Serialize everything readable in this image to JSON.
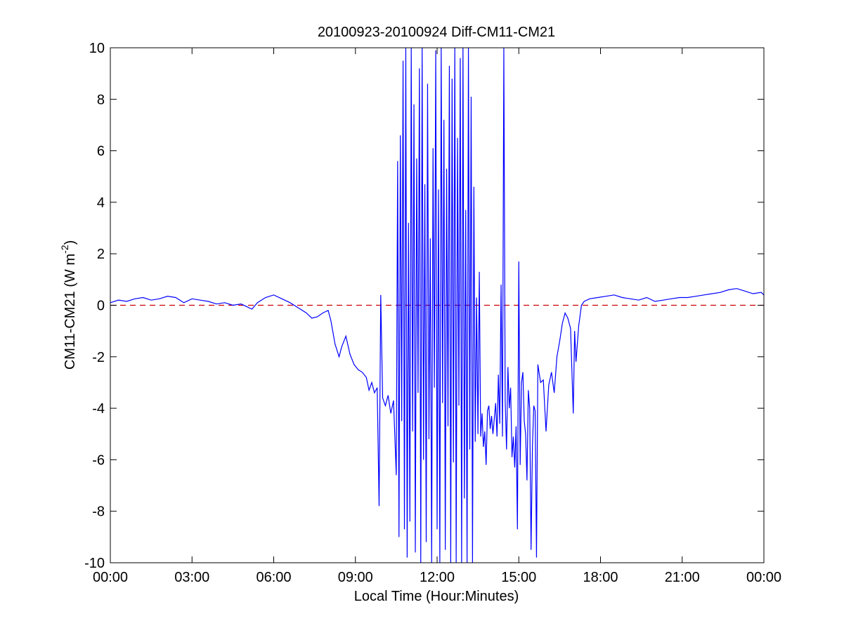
{
  "colors": {
    "background": "#ffffff",
    "axes": "#000000",
    "series": "#0000ff",
    "reference": "#cc0000"
  },
  "chart_data": {
    "type": "line",
    "title": "20100923-20100924 Diff-CM11-CM21",
    "xlabel": "Local Time (Hour:Minutes)",
    "ylabel_main": "CM11-CM21 (W m",
    "ylabel_sup": "-2",
    "ylabel_close": ")",
    "x_unit": "hours",
    "xlim": [
      0,
      24
    ],
    "ylim": [
      -10,
      10
    ],
    "x_ticks": [
      0,
      3,
      6,
      9,
      12,
      15,
      18,
      21,
      24
    ],
    "x_tick_labels": [
      "00:00",
      "03:00",
      "06:00",
      "09:00",
      "12:00",
      "15:00",
      "18:00",
      "21:00",
      "00:00"
    ],
    "y_ticks": [
      -10,
      -8,
      -6,
      -4,
      -2,
      0,
      2,
      4,
      6,
      8,
      10
    ],
    "y_tick_labels": [
      "-10",
      "-8",
      "-6",
      "-4",
      "-2",
      "0",
      "2",
      "4",
      "6",
      "8",
      "10"
    ],
    "grid": false,
    "reference_line": {
      "y": 0,
      "style": "dashed"
    },
    "series": [
      {
        "x": [
          0.0,
          0.3,
          0.6,
          0.9,
          1.2,
          1.5,
          1.8,
          2.1,
          2.4,
          2.7,
          3.0,
          3.3,
          3.6,
          3.9,
          4.2,
          4.5,
          4.8,
          5.0,
          5.2,
          5.4,
          5.7,
          6.0,
          6.3,
          6.6,
          6.9,
          7.2,
          7.4,
          7.6,
          7.8,
          8.0,
          8.1,
          8.25,
          8.4,
          8.5,
          8.65,
          8.8,
          8.95,
          9.1,
          9.25,
          9.4,
          9.5,
          9.6,
          9.7,
          9.8,
          9.87,
          9.93,
          10.0,
          10.1,
          10.2,
          10.3,
          10.4,
          10.5,
          10.55,
          10.6,
          10.65,
          10.7,
          10.75,
          10.8,
          10.85,
          10.9,
          10.95,
          11.0,
          11.05,
          11.1,
          11.15,
          11.2,
          11.25,
          11.3,
          11.35,
          11.4,
          11.45,
          11.5,
          11.55,
          11.6,
          11.65,
          11.7,
          11.75,
          11.8,
          11.85,
          11.9,
          11.95,
          12.0,
          12.05,
          12.1,
          12.15,
          12.2,
          12.25,
          12.3,
          12.35,
          12.4,
          12.45,
          12.5,
          12.55,
          12.6,
          12.65,
          12.7,
          12.75,
          12.8,
          12.85,
          12.9,
          12.95,
          13.0,
          13.05,
          13.1,
          13.15,
          13.2,
          13.25,
          13.3,
          13.35,
          13.4,
          13.45,
          13.5,
          13.55,
          13.6,
          13.65,
          13.7,
          13.75,
          13.8,
          13.85,
          13.9,
          13.95,
          14.0,
          14.05,
          14.1,
          14.15,
          14.2,
          14.25,
          14.3,
          14.35,
          14.4,
          14.45,
          14.5,
          14.55,
          14.6,
          14.65,
          14.7,
          14.75,
          14.8,
          14.85,
          14.9,
          14.95,
          15.0,
          15.05,
          15.1,
          15.15,
          15.2,
          15.25,
          15.3,
          15.35,
          15.4,
          15.45,
          15.5,
          15.55,
          15.6,
          15.65,
          15.7,
          15.8,
          15.9,
          16.0,
          16.1,
          16.2,
          16.3,
          16.4,
          16.5,
          16.6,
          16.7,
          16.8,
          16.9,
          17.0,
          17.05,
          17.1,
          17.2,
          17.3,
          17.4,
          17.6,
          17.9,
          18.2,
          18.5,
          18.8,
          19.1,
          19.4,
          19.7,
          20.0,
          20.3,
          20.6,
          20.9,
          21.2,
          21.5,
          21.8,
          22.1,
          22.4,
          22.7,
          23.0,
          23.3,
          23.6,
          23.9,
          24.0
        ],
        "values": [
          0.1,
          0.2,
          0.15,
          0.25,
          0.3,
          0.2,
          0.25,
          0.35,
          0.3,
          0.1,
          0.25,
          0.2,
          0.15,
          0.05,
          0.1,
          0.0,
          0.05,
          -0.05,
          -0.15,
          0.1,
          0.3,
          0.4,
          0.25,
          0.1,
          -0.1,
          -0.3,
          -0.5,
          -0.45,
          -0.3,
          -0.2,
          -0.6,
          -1.5,
          -2.0,
          -1.6,
          -1.2,
          -1.9,
          -2.3,
          -2.5,
          -2.6,
          -2.8,
          -3.3,
          -3.0,
          -3.4,
          -3.2,
          -7.8,
          0.4,
          -3.6,
          -3.9,
          -3.5,
          -4.2,
          -3.7,
          -6.6,
          5.6,
          -9.0,
          6.6,
          -4.5,
          9.5,
          -8.7,
          10.0,
          -9.8,
          3.2,
          -8.4,
          10.0,
          -4.9,
          7.8,
          -9.6,
          5.7,
          -3.4,
          9.2,
          -10.0,
          10.0,
          -6.0,
          4.7,
          -9.2,
          8.6,
          -5.2,
          2.6,
          -10.0,
          6.1,
          -3.2,
          9.9,
          -8.7,
          4.5,
          -10.0,
          10.0,
          -3.8,
          7.2,
          -9.5,
          5.3,
          -4.7,
          9.3,
          -10.0,
          8.8,
          -6.1,
          10.0,
          -10.0,
          6.5,
          -3.9,
          9.6,
          -10.0,
          10.0,
          -7.5,
          3.7,
          -10.0,
          10.0,
          -5.6,
          8.1,
          -10.0,
          4.6,
          -5.3,
          0.3,
          -5.0,
          1.3,
          -5.1,
          -4.2,
          -5.5,
          -4.9,
          -6.2,
          -4.1,
          -3.9,
          -4.8,
          -4.3,
          -5.0,
          -4.4,
          -3.8,
          -5.1,
          -2.7,
          -4.6,
          0.8,
          -5.1,
          10.0,
          -3.7,
          -5.6,
          -2.4,
          -4.0,
          -3.2,
          -5.9,
          -5.1,
          -6.3,
          -4.7,
          -8.7,
          1.7,
          -6.2,
          -3.0,
          -2.6,
          -4.5,
          -5.0,
          -6.8,
          -3.3,
          -4.0,
          -9.5,
          -5.5,
          -3.9,
          -4.1,
          -9.8,
          -2.3,
          -3.0,
          -2.9,
          -4.9,
          -3.1,
          -2.6,
          -3.4,
          -2.0,
          -1.4,
          -0.7,
          -0.3,
          -0.5,
          -0.9,
          -4.2,
          -1.0,
          -2.2,
          -0.8,
          0.0,
          0.15,
          0.25,
          0.3,
          0.35,
          0.4,
          0.3,
          0.25,
          0.2,
          0.3,
          0.15,
          0.2,
          0.25,
          0.3,
          0.3,
          0.35,
          0.4,
          0.45,
          0.5,
          0.6,
          0.65,
          0.55,
          0.45,
          0.5,
          0.4
        ]
      }
    ]
  }
}
